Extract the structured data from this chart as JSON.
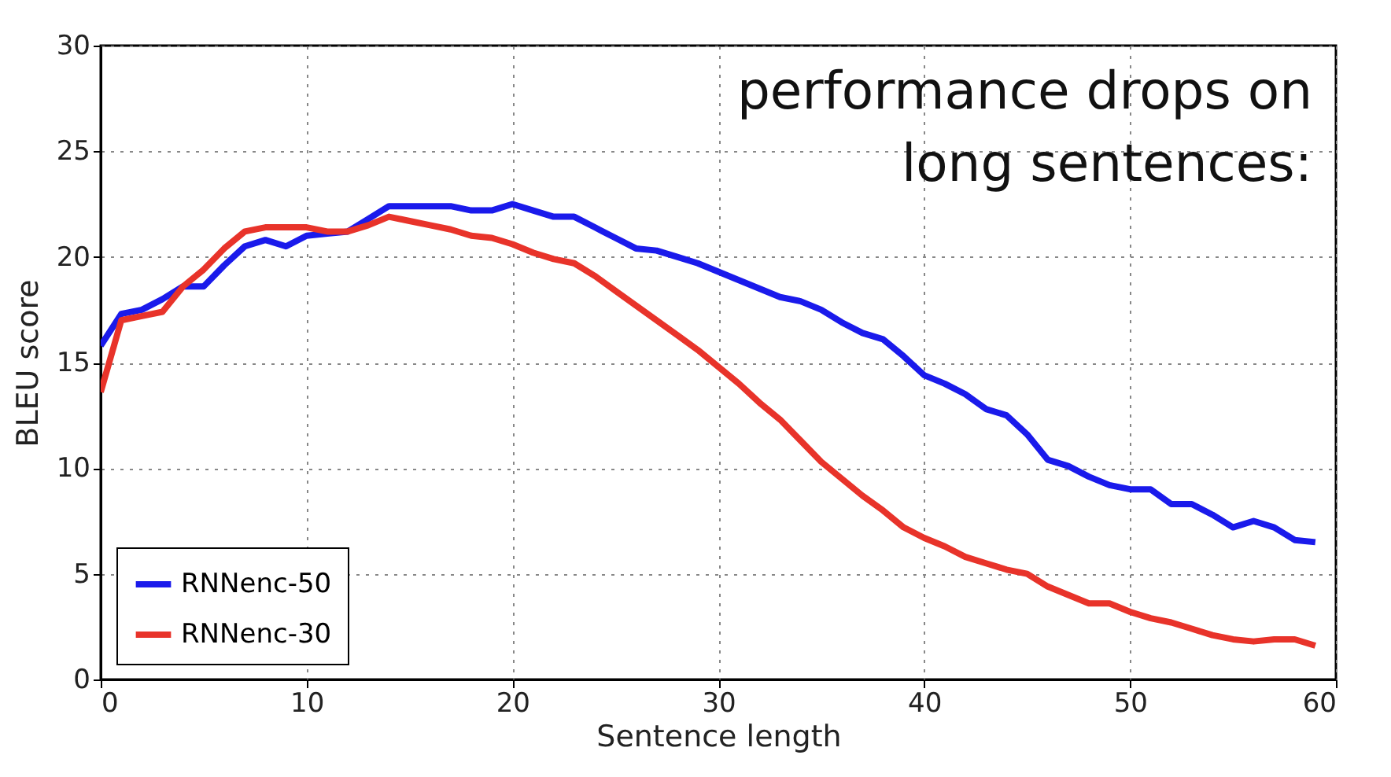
{
  "chart_data": {
    "type": "line",
    "xlabel": "Sentence length",
    "ylabel": "BLEU score",
    "annotations": [
      "performance drops on\nlong sentences:"
    ],
    "x": [
      0,
      1,
      2,
      3,
      4,
      5,
      6,
      7,
      8,
      9,
      10,
      11,
      12,
      13,
      14,
      15,
      16,
      17,
      18,
      19,
      20,
      21,
      22,
      23,
      24,
      25,
      26,
      27,
      28,
      29,
      30,
      31,
      32,
      33,
      34,
      35,
      36,
      37,
      38,
      39,
      40,
      41,
      42,
      43,
      44,
      45,
      46,
      47,
      48,
      49,
      50,
      51,
      52,
      53,
      54,
      55,
      56,
      57,
      58,
      59
    ],
    "series": [
      {
        "name": "RNNenc-50",
        "color": "#1a1aeb",
        "values": [
          15.8,
          17.3,
          17.5,
          18,
          18.6,
          18.6,
          19.6,
          20.5,
          20.8,
          20.5,
          21,
          21.1,
          21.2,
          21.8,
          22.4,
          22.4,
          22.4,
          22.4,
          22.2,
          22.2,
          22.5,
          22.2,
          21.9,
          21.9,
          21.4,
          20.9,
          20.4,
          20.3,
          20,
          19.7,
          19.3,
          18.9,
          18.5,
          18.1,
          17.9,
          17.5,
          16.9,
          16.4,
          16.1,
          15.3,
          14.4,
          14,
          13.5,
          12.8,
          12.5,
          11.6,
          10.4,
          10.1,
          9.6,
          9.2,
          9,
          9,
          8.3,
          8.3,
          7.8,
          7.2,
          7.5,
          7.2,
          6.6,
          6.5
        ]
      },
      {
        "name": "RNNenc-30",
        "color": "#e8332a",
        "values": [
          13.6,
          17,
          17.2,
          17.4,
          18.6,
          19.4,
          20.4,
          21.2,
          21.4,
          21.4,
          21.4,
          21.2,
          21.2,
          21.5,
          21.9,
          21.7,
          21.5,
          21.3,
          21,
          20.9,
          20.6,
          20.2,
          19.9,
          19.7,
          19.1,
          18.4,
          17.7,
          17,
          16.3,
          15.6,
          14.8,
          14,
          13.1,
          12.3,
          11.3,
          10.3,
          9.5,
          8.7,
          8,
          7.2,
          6.7,
          6.3,
          5.8,
          5.5,
          5.2,
          5,
          4.4,
          4,
          3.6,
          3.6,
          3.2,
          2.9,
          2.7,
          2.4,
          2.1,
          1.9,
          1.8,
          1.9,
          1.9,
          1.6
        ]
      }
    ],
    "xlim": [
      0,
      60
    ],
    "xticks": [
      0,
      10,
      20,
      30,
      40,
      50,
      60
    ],
    "ylim": [
      0,
      30
    ],
    "yticks": [
      0,
      5,
      10,
      15,
      20,
      25,
      30
    ],
    "grid": true,
    "legend": "bottom left",
    "line_style": "solid",
    "marker": "none"
  }
}
